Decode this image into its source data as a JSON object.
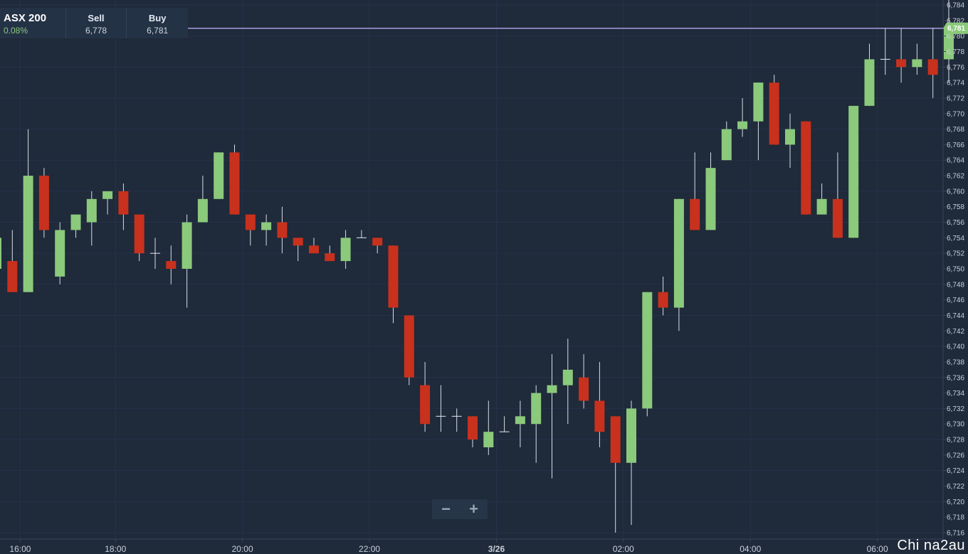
{
  "instrument": {
    "name": "ASX 200",
    "change": "0.08%",
    "sell_label": "Sell",
    "sell_value": "6,778",
    "buy_label": "Buy",
    "buy_value": "6,781"
  },
  "zoom": {
    "minus_label": "−",
    "plus_label": "+"
  },
  "watermark": "Chi na2au",
  "colors": {
    "background": "#1f2a3a",
    "up": "#8bc97b",
    "down": "#c8311d",
    "price_line": "#a99ee0",
    "axis_text": "#c9d0da"
  },
  "chart_data": {
    "type": "candlestick",
    "ylim": [
      6716,
      6785
    ],
    "y_ticks": [
      6716,
      6718,
      6720,
      6722,
      6724,
      6726,
      6728,
      6730,
      6732,
      6734,
      6736,
      6738,
      6740,
      6742,
      6744,
      6746,
      6748,
      6750,
      6752,
      6754,
      6756,
      6758,
      6760,
      6762,
      6764,
      6766,
      6768,
      6770,
      6772,
      6774,
      6776,
      6778,
      6780,
      6782,
      6784
    ],
    "x_ticks": [
      {
        "label": "16:00",
        "idx": 1.5
      },
      {
        "label": "18:00",
        "idx": 7.5
      },
      {
        "label": "20:00",
        "idx": 15.5
      },
      {
        "label": "22:00",
        "idx": 23.5
      },
      {
        "label": "3/26",
        "idx": 31.5
      },
      {
        "label": "02:00",
        "idx": 39.5
      },
      {
        "label": "04:00",
        "idx": 47.5
      },
      {
        "label": "06:00",
        "idx": 55.5
      }
    ],
    "current_price": 6781,
    "current_price_label": "6,781",
    "candles": [
      {
        "o": 6750,
        "h": 6754,
        "l": 6750,
        "c": 6754
      },
      {
        "o": 6751,
        "h": 6755,
        "l": 6747,
        "c": 6747
      },
      {
        "o": 6747,
        "h": 6768,
        "l": 6747,
        "c": 6762
      },
      {
        "o": 6762,
        "h": 6763,
        "l": 6754,
        "c": 6755
      },
      {
        "o": 6749,
        "h": 6756,
        "l": 6748,
        "c": 6755
      },
      {
        "o": 6755,
        "h": 6757,
        "l": 6754,
        "c": 6757
      },
      {
        "o": 6756,
        "h": 6760,
        "l": 6753,
        "c": 6759
      },
      {
        "o": 6759,
        "h": 6760,
        "l": 6757,
        "c": 6760
      },
      {
        "o": 6760,
        "h": 6761,
        "l": 6755,
        "c": 6757
      },
      {
        "o": 6757,
        "h": 6757,
        "l": 6751,
        "c": 6752
      },
      {
        "o": 6752,
        "h": 6754,
        "l": 6750,
        "c": 6752
      },
      {
        "o": 6751,
        "h": 6753,
        "l": 6748,
        "c": 6750
      },
      {
        "o": 6750,
        "h": 6757,
        "l": 6745,
        "c": 6756
      },
      {
        "o": 6756,
        "h": 6762,
        "l": 6756,
        "c": 6759
      },
      {
        "o": 6759,
        "h": 6765,
        "l": 6759,
        "c": 6765
      },
      {
        "o": 6765,
        "h": 6766,
        "l": 6757,
        "c": 6757
      },
      {
        "o": 6757,
        "h": 6757,
        "l": 6753,
        "c": 6755
      },
      {
        "o": 6755,
        "h": 6757,
        "l": 6753,
        "c": 6756
      },
      {
        "o": 6756,
        "h": 6758,
        "l": 6752,
        "c": 6754
      },
      {
        "o": 6754,
        "h": 6754,
        "l": 6751,
        "c": 6753
      },
      {
        "o": 6753,
        "h": 6754,
        "l": 6752,
        "c": 6752
      },
      {
        "o": 6752,
        "h": 6753,
        "l": 6751,
        "c": 6751
      },
      {
        "o": 6751,
        "h": 6755,
        "l": 6750,
        "c": 6754
      },
      {
        "o": 6754,
        "h": 6755,
        "l": 6754,
        "c": 6754
      },
      {
        "o": 6754,
        "h": 6754,
        "l": 6752,
        "c": 6753
      },
      {
        "o": 6753,
        "h": 6753,
        "l": 6743,
        "c": 6745
      },
      {
        "o": 6744,
        "h": 6744,
        "l": 6735,
        "c": 6736
      },
      {
        "o": 6735,
        "h": 6738,
        "l": 6729,
        "c": 6730
      },
      {
        "o": 6731,
        "h": 6735,
        "l": 6729,
        "c": 6731
      },
      {
        "o": 6731,
        "h": 6732,
        "l": 6729,
        "c": 6731
      },
      {
        "o": 6731,
        "h": 6731,
        "l": 6727,
        "c": 6728
      },
      {
        "o": 6727,
        "h": 6733,
        "l": 6726,
        "c": 6729
      },
      {
        "o": 6729,
        "h": 6731,
        "l": 6729,
        "c": 6729
      },
      {
        "o": 6730,
        "h": 6733,
        "l": 6727,
        "c": 6731
      },
      {
        "o": 6730,
        "h": 6735,
        "l": 6725,
        "c": 6734
      },
      {
        "o": 6734,
        "h": 6739,
        "l": 6723,
        "c": 6735
      },
      {
        "o": 6735,
        "h": 6741,
        "l": 6730,
        "c": 6737
      },
      {
        "o": 6736,
        "h": 6739,
        "l": 6732,
        "c": 6733
      },
      {
        "o": 6733,
        "h": 6738,
        "l": 6727,
        "c": 6729
      },
      {
        "o": 6731,
        "h": 6731,
        "l": 6716,
        "c": 6725
      },
      {
        "o": 6725,
        "h": 6733,
        "l": 6717,
        "c": 6732
      },
      {
        "o": 6732,
        "h": 6747,
        "l": 6731,
        "c": 6747
      },
      {
        "o": 6747,
        "h": 6749,
        "l": 6744,
        "c": 6745
      },
      {
        "o": 6745,
        "h": 6759,
        "l": 6742,
        "c": 6759
      },
      {
        "o": 6759,
        "h": 6765,
        "l": 6755,
        "c": 6755
      },
      {
        "o": 6755,
        "h": 6765,
        "l": 6755,
        "c": 6763
      },
      {
        "o": 6764,
        "h": 6769,
        "l": 6764,
        "c": 6768
      },
      {
        "o": 6768,
        "h": 6772,
        "l": 6767,
        "c": 6769
      },
      {
        "o": 6769,
        "h": 6774,
        "l": 6764,
        "c": 6774
      },
      {
        "o": 6774,
        "h": 6775,
        "l": 6766,
        "c": 6766
      },
      {
        "o": 6766,
        "h": 6770,
        "l": 6763,
        "c": 6768
      },
      {
        "o": 6769,
        "h": 6769,
        "l": 6757,
        "c": 6757
      },
      {
        "o": 6757,
        "h": 6761,
        "l": 6757,
        "c": 6759
      },
      {
        "o": 6759,
        "h": 6765,
        "l": 6754,
        "c": 6754
      },
      {
        "o": 6754,
        "h": 6771,
        "l": 6754,
        "c": 6771
      },
      {
        "o": 6771,
        "h": 6779,
        "l": 6771,
        "c": 6777
      },
      {
        "o": 6777,
        "h": 6781,
        "l": 6775,
        "c": 6777
      },
      {
        "o": 6777,
        "h": 6781,
        "l": 6774,
        "c": 6776
      },
      {
        "o": 6776,
        "h": 6779,
        "l": 6775,
        "c": 6777
      },
      {
        "o": 6777,
        "h": 6781,
        "l": 6772,
        "c": 6775
      },
      {
        "o": 6777,
        "h": 6785,
        "l": 6774,
        "c": 6781
      }
    ]
  }
}
